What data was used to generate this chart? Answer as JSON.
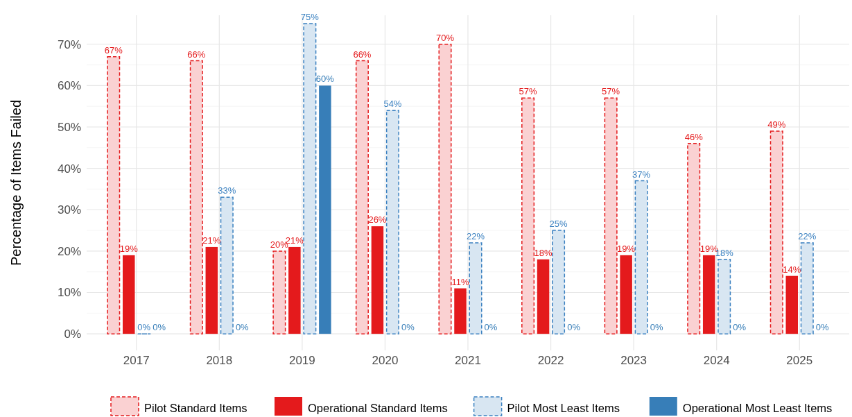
{
  "chart_data": {
    "type": "bar",
    "ylabel": "Percentage of Items Failed",
    "categories": [
      "2017",
      "2018",
      "2019",
      "2020",
      "2021",
      "2022",
      "2023",
      "2024",
      "2025"
    ],
    "series": [
      {
        "name": "Pilot Standard Items",
        "color": "#e41a1c",
        "line_style": "dashed",
        "values": [
          67,
          66,
          20,
          66,
          70,
          57,
          57,
          46,
          49
        ],
        "value_labels": [
          "67%",
          "66%",
          "20%",
          "66%",
          "70%",
          "57%",
          "57%",
          "46%",
          "49%"
        ]
      },
      {
        "name": "Operational Standard Items",
        "color": "#e41a1c",
        "line_style": "solid",
        "values": [
          19,
          21,
          21,
          26,
          11,
          18,
          19,
          19,
          14
        ],
        "value_labels": [
          "19%",
          "21%",
          "21%",
          "26%",
          "11%",
          "18%",
          "19%",
          "19%",
          "14%"
        ]
      },
      {
        "name": "Pilot Most Least Items",
        "color": "#3a80c0",
        "line_style": "dashed",
        "values": [
          0,
          33,
          75,
          54,
          22,
          25,
          37,
          18,
          22
        ],
        "value_labels": [
          "0%",
          "33%",
          "75%",
          "54%",
          "22%",
          "25%",
          "37%",
          "18%",
          "22%"
        ]
      },
      {
        "name": "Operational Most Least Items",
        "color": "#377eb8",
        "line_style": "solid",
        "values": [
          0,
          0,
          60,
          0,
          0,
          0,
          0,
          0,
          0
        ],
        "value_labels": [
          "0%",
          "0%",
          "60%",
          "0%",
          "0%",
          "0%",
          "0%",
          "0%",
          "0%"
        ]
      }
    ],
    "ylim": [
      -4,
      77
    ],
    "yticks": [
      {
        "value": 0,
        "label": "0%"
      },
      {
        "value": 10,
        "label": "10%"
      },
      {
        "value": 20,
        "label": "20%"
      },
      {
        "value": 30,
        "label": "30%"
      },
      {
        "value": 40,
        "label": "40%"
      },
      {
        "value": 50,
        "label": "50%"
      },
      {
        "value": 60,
        "label": "60%"
      },
      {
        "value": 70,
        "label": "70%"
      }
    ],
    "grid": true,
    "legend": "bottom"
  }
}
